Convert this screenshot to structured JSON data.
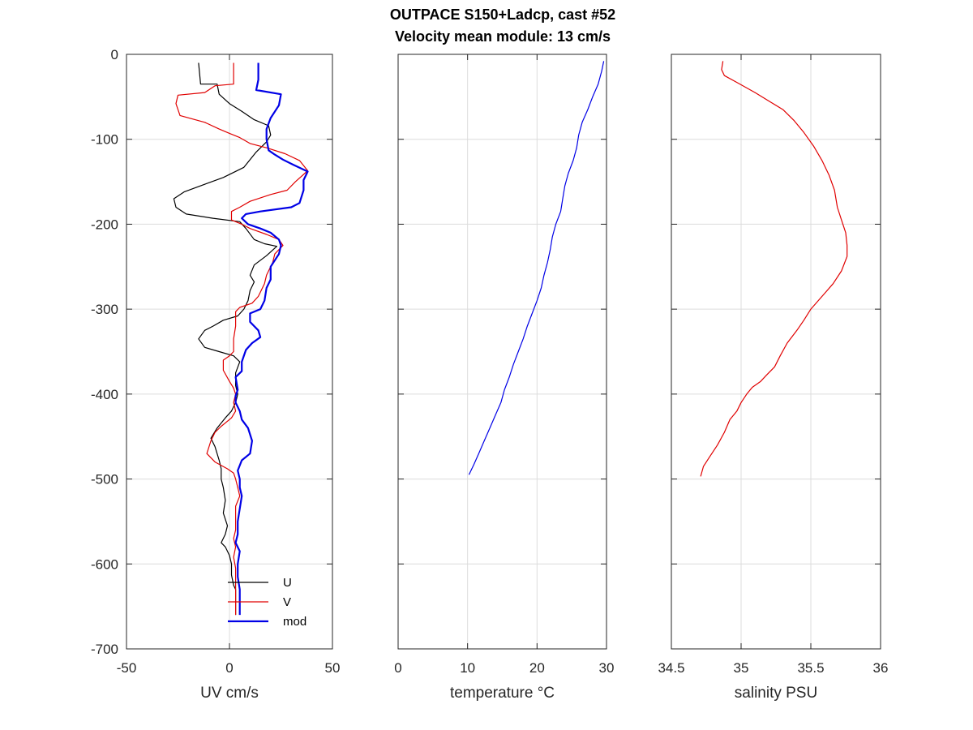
{
  "title": {
    "line1": "OUTPACE S150+Ladcp, cast #52",
    "line2": "Velocity mean module:  13 cm/s"
  },
  "colors": {
    "u": "#000000",
    "v": "#e00000",
    "mod": "#0000e6",
    "temp": "#0000e6",
    "sal": "#e00000"
  },
  "chart_data": [
    {
      "type": "line",
      "name": "velocity",
      "xlabel": "UV cm/s",
      "ylabel": "",
      "xlim": [
        -50,
        50
      ],
      "ylim": [
        -700,
        0
      ],
      "xticks": [
        -50,
        0,
        50
      ],
      "yticks": [
        0,
        -100,
        -200,
        -300,
        -400,
        -500,
        -600,
        -700
      ],
      "grid": true,
      "legend": {
        "placement": "bottom-right",
        "entries": [
          "U",
          "V",
          "mod"
        ]
      },
      "series": [
        {
          "name": "U",
          "color": "#000000",
          "width": 1.2,
          "points": [
            [
              -15,
              -10
            ],
            [
              -14,
              -35
            ],
            [
              -6,
              -35
            ],
            [
              -5,
              -47
            ],
            [
              0,
              -58
            ],
            [
              6,
              -67
            ],
            [
              12,
              -77
            ],
            [
              19,
              -84
            ],
            [
              20,
              -95
            ],
            [
              18,
              -103
            ],
            [
              13,
              -115
            ],
            [
              7,
              -133
            ],
            [
              -3,
              -145
            ],
            [
              -12,
              -153
            ],
            [
              -22,
              -162
            ],
            [
              -27,
              -170
            ],
            [
              -26,
              -180
            ],
            [
              -21,
              -188
            ],
            [
              -8,
              -193
            ],
            [
              5,
              -197
            ],
            [
              8,
              -205
            ],
            [
              12,
              -218
            ],
            [
              17,
              -223
            ],
            [
              23,
              -226
            ],
            [
              18,
              -237
            ],
            [
              12,
              -248
            ],
            [
              10,
              -260
            ],
            [
              12,
              -268
            ],
            [
              10,
              -278
            ],
            [
              9,
              -290
            ],
            [
              7,
              -300
            ],
            [
              4,
              -308
            ],
            [
              -3,
              -313
            ],
            [
              -8,
              -320
            ],
            [
              -12,
              -325
            ],
            [
              -15,
              -335
            ],
            [
              -12,
              -345
            ],
            [
              -5,
              -350
            ],
            [
              2,
              -355
            ],
            [
              5,
              -362
            ],
            [
              3,
              -375
            ],
            [
              3,
              -390
            ],
            [
              4,
              -400
            ],
            [
              3,
              -410
            ],
            [
              1,
              -420
            ],
            [
              -2,
              -428
            ],
            [
              -6,
              -440
            ],
            [
              -9,
              -452
            ],
            [
              -7,
              -462
            ],
            [
              -5,
              -478
            ],
            [
              -4,
              -488
            ],
            [
              -4,
              -500
            ],
            [
              -3,
              -510
            ],
            [
              -2,
              -525
            ],
            [
              -3,
              -540
            ],
            [
              -1,
              -555
            ],
            [
              -2,
              -565
            ],
            [
              -4,
              -575
            ],
            [
              -2,
              -580
            ],
            [
              0,
              -590
            ],
            [
              1,
              -600
            ],
            [
              1,
              -613
            ],
            [
              2,
              -625
            ],
            [
              3,
              -630
            ],
            [
              3,
              -660
            ]
          ]
        },
        {
          "name": "V",
          "color": "#e00000",
          "width": 1.2,
          "points": [
            [
              2,
              -10
            ],
            [
              2,
              -35
            ],
            [
              -7,
              -37
            ],
            [
              -12,
              -45
            ],
            [
              -25,
              -48
            ],
            [
              -26,
              -58
            ],
            [
              -24,
              -72
            ],
            [
              -12,
              -80
            ],
            [
              -5,
              -88
            ],
            [
              0,
              -93
            ],
            [
              5,
              -98
            ],
            [
              10,
              -105
            ],
            [
              18,
              -110
            ],
            [
              27,
              -117
            ],
            [
              34,
              -125
            ],
            [
              38,
              -137
            ],
            [
              32,
              -150
            ],
            [
              28,
              -160
            ],
            [
              20,
              -165
            ],
            [
              10,
              -173
            ],
            [
              5,
              -180
            ],
            [
              1,
              -185
            ],
            [
              1,
              -195
            ],
            [
              6,
              -200
            ],
            [
              10,
              -205
            ],
            [
              18,
              -212
            ],
            [
              24,
              -218
            ],
            [
              26,
              -225
            ],
            [
              22,
              -235
            ],
            [
              21,
              -245
            ],
            [
              18,
              -260
            ],
            [
              17,
              -270
            ],
            [
              14,
              -285
            ],
            [
              11,
              -293
            ],
            [
              5,
              -298
            ],
            [
              3,
              -303
            ],
            [
              3,
              -320
            ],
            [
              2,
              -335
            ],
            [
              2,
              -350
            ],
            [
              0,
              -355
            ],
            [
              -3,
              -360
            ],
            [
              -3,
              -372
            ],
            [
              0,
              -385
            ],
            [
              2,
              -393
            ],
            [
              3,
              -400
            ],
            [
              2,
              -410
            ],
            [
              3,
              -420
            ],
            [
              1,
              -428
            ],
            [
              -4,
              -438
            ],
            [
              -7,
              -445
            ],
            [
              -9,
              -455
            ],
            [
              -11,
              -470
            ],
            [
              -7,
              -480
            ],
            [
              -1,
              -488
            ],
            [
              2,
              -493
            ],
            [
              3,
              -500
            ],
            [
              4,
              -510
            ],
            [
              5,
              -520
            ],
            [
              3,
              -532
            ],
            [
              3,
              -545
            ],
            [
              3,
              -560
            ],
            [
              2,
              -570
            ],
            [
              3,
              -580
            ],
            [
              2,
              -592
            ],
            [
              3,
              -605
            ],
            [
              3,
              -618
            ],
            [
              3,
              -630
            ],
            [
              3,
              -660
            ]
          ]
        },
        {
          "name": "mod",
          "color": "#0000e6",
          "width": 2.2,
          "points": [
            [
              14,
              -10
            ],
            [
              14,
              -30
            ],
            [
              13,
              -42
            ],
            [
              25,
              -47
            ],
            [
              24,
              -60
            ],
            [
              20,
              -75
            ],
            [
              18,
              -88
            ],
            [
              18,
              -100
            ],
            [
              19,
              -113
            ],
            [
              22,
              -118
            ],
            [
              26,
              -124
            ],
            [
              31,
              -130
            ],
            [
              38,
              -138
            ],
            [
              36,
              -148
            ],
            [
              36,
              -160
            ],
            [
              34,
              -175
            ],
            [
              30,
              -180
            ],
            [
              15,
              -185
            ],
            [
              8,
              -188
            ],
            [
              6,
              -193
            ],
            [
              9,
              -200
            ],
            [
              15,
              -205
            ],
            [
              20,
              -210
            ],
            [
              24,
              -218
            ],
            [
              25,
              -225
            ],
            [
              24,
              -235
            ],
            [
              20,
              -250
            ],
            [
              20,
              -265
            ],
            [
              18,
              -275
            ],
            [
              17,
              -290
            ],
            [
              15,
              -300
            ],
            [
              10,
              -305
            ],
            [
              10,
              -315
            ],
            [
              14,
              -325
            ],
            [
              15,
              -333
            ],
            [
              11,
              -340
            ],
            [
              8,
              -348
            ],
            [
              6,
              -362
            ],
            [
              6,
              -373
            ],
            [
              3,
              -380
            ],
            [
              4,
              -395
            ],
            [
              3,
              -402
            ],
            [
              3,
              -410
            ],
            [
              5,
              -420
            ],
            [
              6,
              -430
            ],
            [
              9,
              -440
            ],
            [
              11,
              -455
            ],
            [
              10,
              -470
            ],
            [
              6,
              -478
            ],
            [
              4,
              -490
            ],
            [
              5,
              -500
            ],
            [
              5,
              -510
            ],
            [
              6,
              -520
            ],
            [
              5,
              -535
            ],
            [
              4,
              -550
            ],
            [
              4,
              -565
            ],
            [
              3,
              -575
            ],
            [
              5,
              -585
            ],
            [
              4,
              -600
            ],
            [
              4,
              -615
            ],
            [
              5,
              -630
            ],
            [
              5,
              -660
            ]
          ]
        }
      ]
    },
    {
      "type": "line",
      "name": "temperature",
      "xlabel": "temperature °C",
      "ylabel": "",
      "xlim": [
        0,
        30
      ],
      "ylim": [
        -700,
        0
      ],
      "xticks": [
        0,
        10,
        20,
        30
      ],
      "grid": true,
      "series": [
        {
          "color": "#0000e6",
          "width": 1.2,
          "points": [
            [
              29.6,
              -8
            ],
            [
              29.3,
              -20
            ],
            [
              28.8,
              -35
            ],
            [
              28.0,
              -50
            ],
            [
              27.3,
              -65
            ],
            [
              26.5,
              -80
            ],
            [
              26.0,
              -95
            ],
            [
              25.7,
              -110
            ],
            [
              25.2,
              -125
            ],
            [
              24.5,
              -140
            ],
            [
              24.0,
              -155
            ],
            [
              23.7,
              -170
            ],
            [
              23.4,
              -185
            ],
            [
              22.7,
              -200
            ],
            [
              22.2,
              -215
            ],
            [
              21.9,
              -230
            ],
            [
              21.5,
              -245
            ],
            [
              21.0,
              -260
            ],
            [
              20.6,
              -275
            ],
            [
              20.0,
              -290
            ],
            [
              19.3,
              -305
            ],
            [
              18.6,
              -320
            ],
            [
              18.0,
              -335
            ],
            [
              17.3,
              -350
            ],
            [
              16.6,
              -365
            ],
            [
              16.0,
              -380
            ],
            [
              15.3,
              -395
            ],
            [
              14.8,
              -410
            ],
            [
              14.0,
              -425
            ],
            [
              13.2,
              -440
            ],
            [
              12.4,
              -455
            ],
            [
              11.6,
              -470
            ],
            [
              10.9,
              -483
            ],
            [
              10.2,
              -495
            ]
          ]
        }
      ]
    },
    {
      "type": "line",
      "name": "salinity",
      "xlabel": "salinity PSU",
      "ylabel": "",
      "xlim": [
        34.5,
        36
      ],
      "ylim": [
        -700,
        0
      ],
      "xticks": [
        34.5,
        35,
        35.5,
        36
      ],
      "xtick_labels": [
        "34.5",
        "35",
        "35.5",
        "36"
      ],
      "grid": true,
      "series": [
        {
          "color": "#e00000",
          "width": 1.2,
          "points": [
            [
              34.87,
              -8
            ],
            [
              34.86,
              -18
            ],
            [
              34.88,
              -25
            ],
            [
              34.97,
              -33
            ],
            [
              35.1,
              -45
            ],
            [
              35.22,
              -57
            ],
            [
              35.3,
              -65
            ],
            [
              35.38,
              -78
            ],
            [
              35.45,
              -92
            ],
            [
              35.52,
              -108
            ],
            [
              35.58,
              -125
            ],
            [
              35.63,
              -142
            ],
            [
              35.67,
              -160
            ],
            [
              35.69,
              -180
            ],
            [
              35.72,
              -195
            ],
            [
              35.75,
              -210
            ],
            [
              35.76,
              -225
            ],
            [
              35.76,
              -238
            ],
            [
              35.72,
              -255
            ],
            [
              35.66,
              -270
            ],
            [
              35.58,
              -285
            ],
            [
              35.5,
              -300
            ],
            [
              35.45,
              -313
            ],
            [
              35.4,
              -325
            ],
            [
              35.33,
              -340
            ],
            [
              35.28,
              -355
            ],
            [
              35.24,
              -368
            ],
            [
              35.18,
              -378
            ],
            [
              35.14,
              -385
            ],
            [
              35.08,
              -392
            ],
            [
              35.04,
              -400
            ],
            [
              35.0,
              -410
            ],
            [
              34.97,
              -420
            ],
            [
              34.92,
              -430
            ],
            [
              34.88,
              -445
            ],
            [
              34.83,
              -460
            ],
            [
              34.77,
              -475
            ],
            [
              34.73,
              -485
            ],
            [
              34.71,
              -497
            ]
          ]
        }
      ]
    }
  ]
}
